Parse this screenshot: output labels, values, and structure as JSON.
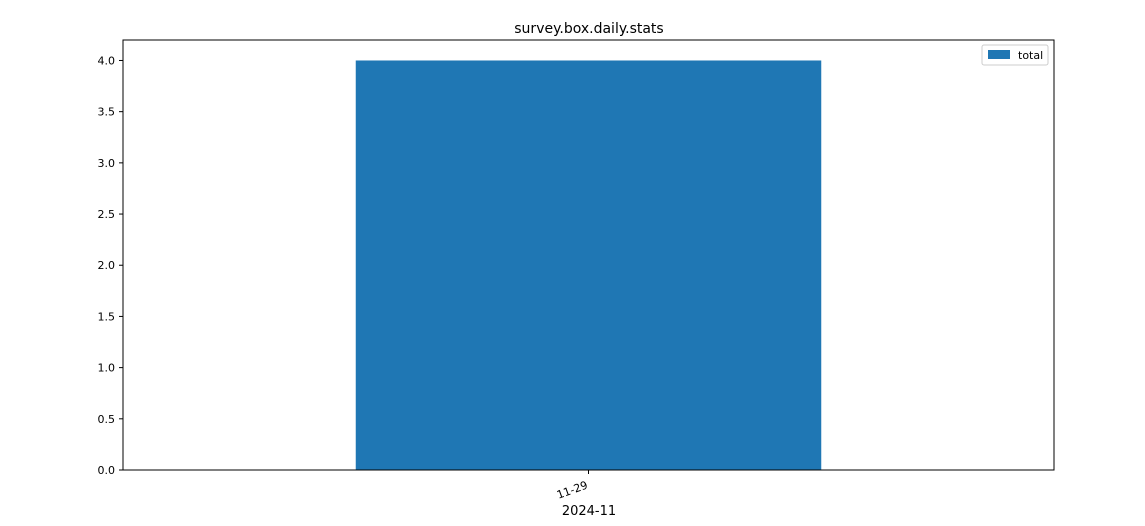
{
  "chart_data": {
    "type": "bar",
    "title": "survey.box.daily.stats",
    "xlabel": "2024-11",
    "ylabel": "",
    "categories": [
      "11-29"
    ],
    "series": [
      {
        "name": "total",
        "values": [
          4.0
        ]
      }
    ],
    "ylim": [
      0,
      4.2
    ],
    "yticks": [
      "0.0",
      "0.5",
      "1.0",
      "1.5",
      "2.0",
      "2.5",
      "3.0",
      "3.5",
      "4.0"
    ],
    "grid": false,
    "legend": "top-right",
    "colors": {
      "total": "#1f77b4"
    }
  }
}
